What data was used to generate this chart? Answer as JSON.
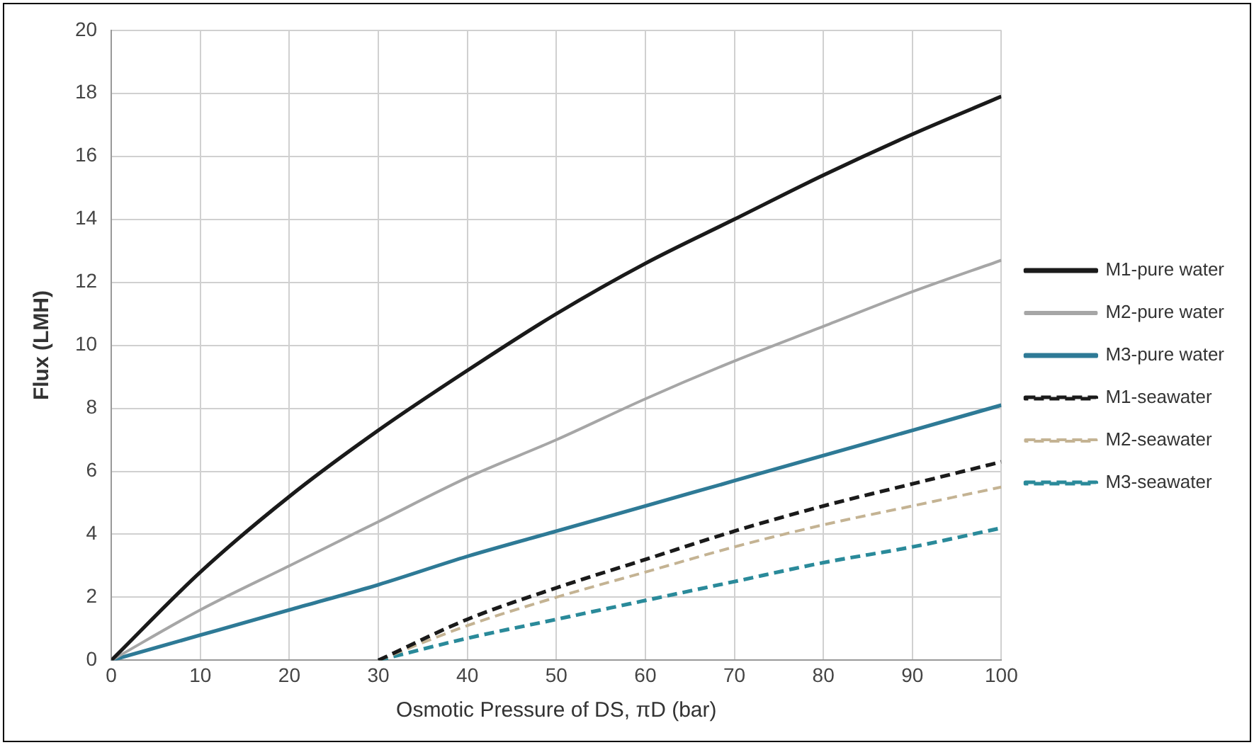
{
  "chart_data": {
    "type": "line",
    "xlabel": "Osmotic Pressure of DS, πD (bar)",
    "ylabel": "Flux (LMH)",
    "xlim": [
      0,
      100
    ],
    "xticks": [
      0,
      10,
      20,
      30,
      40,
      50,
      60,
      70,
      80,
      90,
      100
    ],
    "ylim": [
      0,
      20
    ],
    "yticks": [
      0,
      2,
      4,
      6,
      8,
      10,
      12,
      14,
      16,
      18,
      20
    ],
    "grid": true,
    "legend": "right",
    "marker": "none",
    "series": [
      {
        "name": "M1-pure water",
        "color": "#1a1a1a",
        "line_style": "solid",
        "x": [
          0,
          10,
          20,
          30,
          40,
          50,
          60,
          70,
          80,
          90,
          100
        ],
        "values": [
          0,
          2.8,
          5.2,
          7.3,
          9.2,
          11.0,
          12.6,
          14.0,
          15.4,
          16.7,
          17.9
        ]
      },
      {
        "name": "M2-pure water",
        "color": "#a6a6a6",
        "line_style": "solid",
        "x": [
          0,
          10,
          20,
          30,
          40,
          50,
          60,
          70,
          80,
          90,
          100
        ],
        "values": [
          0,
          1.6,
          3.0,
          4.4,
          5.8,
          7.0,
          8.3,
          9.5,
          10.6,
          11.7,
          12.7
        ]
      },
      {
        "name": "M3-pure water",
        "color": "#2e7a96",
        "line_style": "solid",
        "x": [
          0,
          10,
          20,
          30,
          40,
          50,
          60,
          70,
          80,
          90,
          100
        ],
        "values": [
          0,
          0.8,
          1.6,
          2.4,
          3.3,
          4.1,
          4.9,
          5.7,
          6.5,
          7.3,
          8.1
        ]
      },
      {
        "name": "M1-seawater",
        "color": "#1a1a1a",
        "line_style": "dashed",
        "x": [
          30,
          40,
          50,
          60,
          70,
          80,
          90,
          100
        ],
        "values": [
          0,
          1.3,
          2.3,
          3.2,
          4.1,
          4.9,
          5.6,
          6.3
        ]
      },
      {
        "name": "M2-seawater",
        "color": "#c4b393",
        "line_style": "dashed",
        "x": [
          30,
          40,
          50,
          60,
          70,
          80,
          90,
          100
        ],
        "values": [
          0,
          1.1,
          2.0,
          2.8,
          3.6,
          4.3,
          4.9,
          5.5
        ]
      },
      {
        "name": "M3-seawater",
        "color": "#2a8a9a",
        "line_style": "dashed",
        "x": [
          30,
          40,
          50,
          60,
          70,
          80,
          90,
          100
        ],
        "values": [
          0,
          0.7,
          1.3,
          1.9,
          2.5,
          3.1,
          3.6,
          4.2
        ]
      }
    ]
  }
}
